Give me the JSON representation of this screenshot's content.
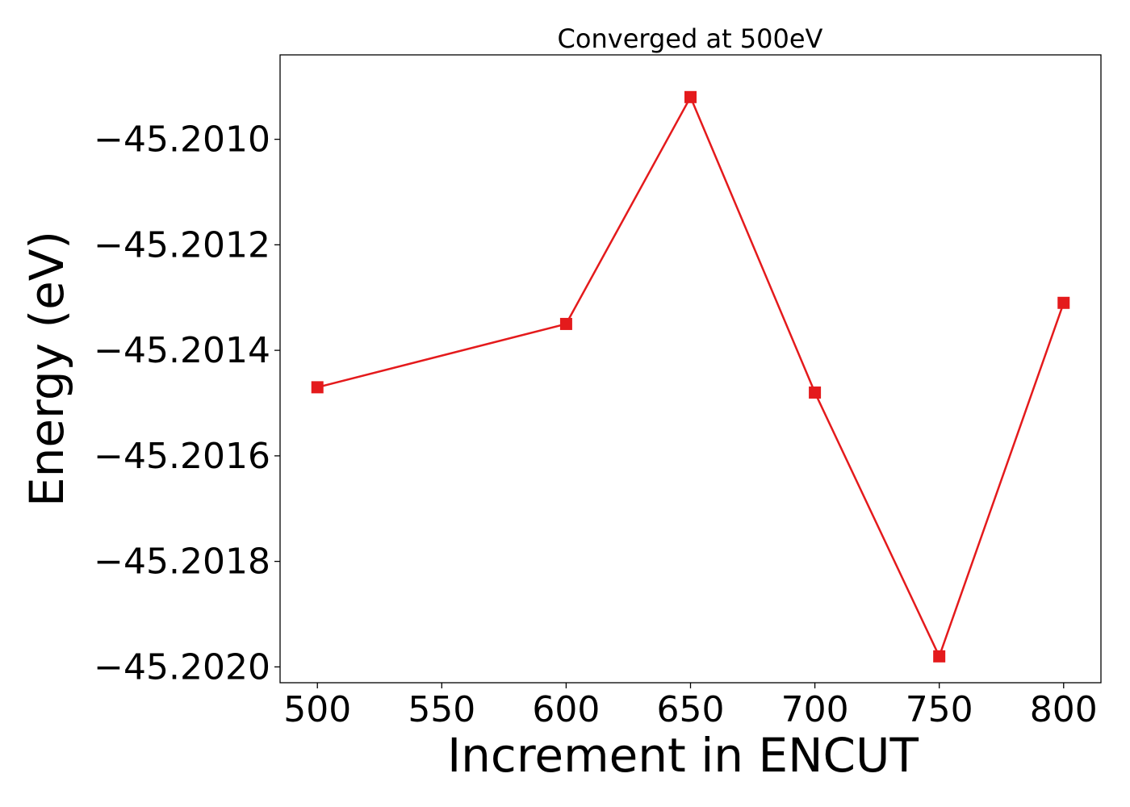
{
  "chart_data": {
    "type": "line",
    "title": "Converged at 500eV",
    "xlabel": "Increment in ENCUT",
    "ylabel": "Energy (eV)",
    "x": [
      500,
      600,
      650,
      700,
      750,
      800
    ],
    "y": [
      -45.20147,
      -45.20135,
      -45.20092,
      -45.20148,
      -45.20198,
      -45.20131
    ],
    "xlim": [
      485,
      815
    ],
    "ylim": [
      -45.20203,
      -45.20084
    ],
    "xticks": [
      500,
      550,
      600,
      650,
      700,
      750,
      800
    ],
    "yticks": [
      -45.201,
      -45.2012,
      -45.2014,
      -45.2016,
      -45.2018,
      -45.202
    ],
    "xtick_labels": [
      "500",
      "550",
      "600",
      "650",
      "700",
      "750",
      "800"
    ],
    "ytick_labels": [
      "−45.2010",
      "−45.2012",
      "−45.2014",
      "−45.2016",
      "−45.2018",
      "−45.2020"
    ],
    "series_color": "#e41a1c",
    "marker": "square",
    "grid": false,
    "legend": false
  }
}
